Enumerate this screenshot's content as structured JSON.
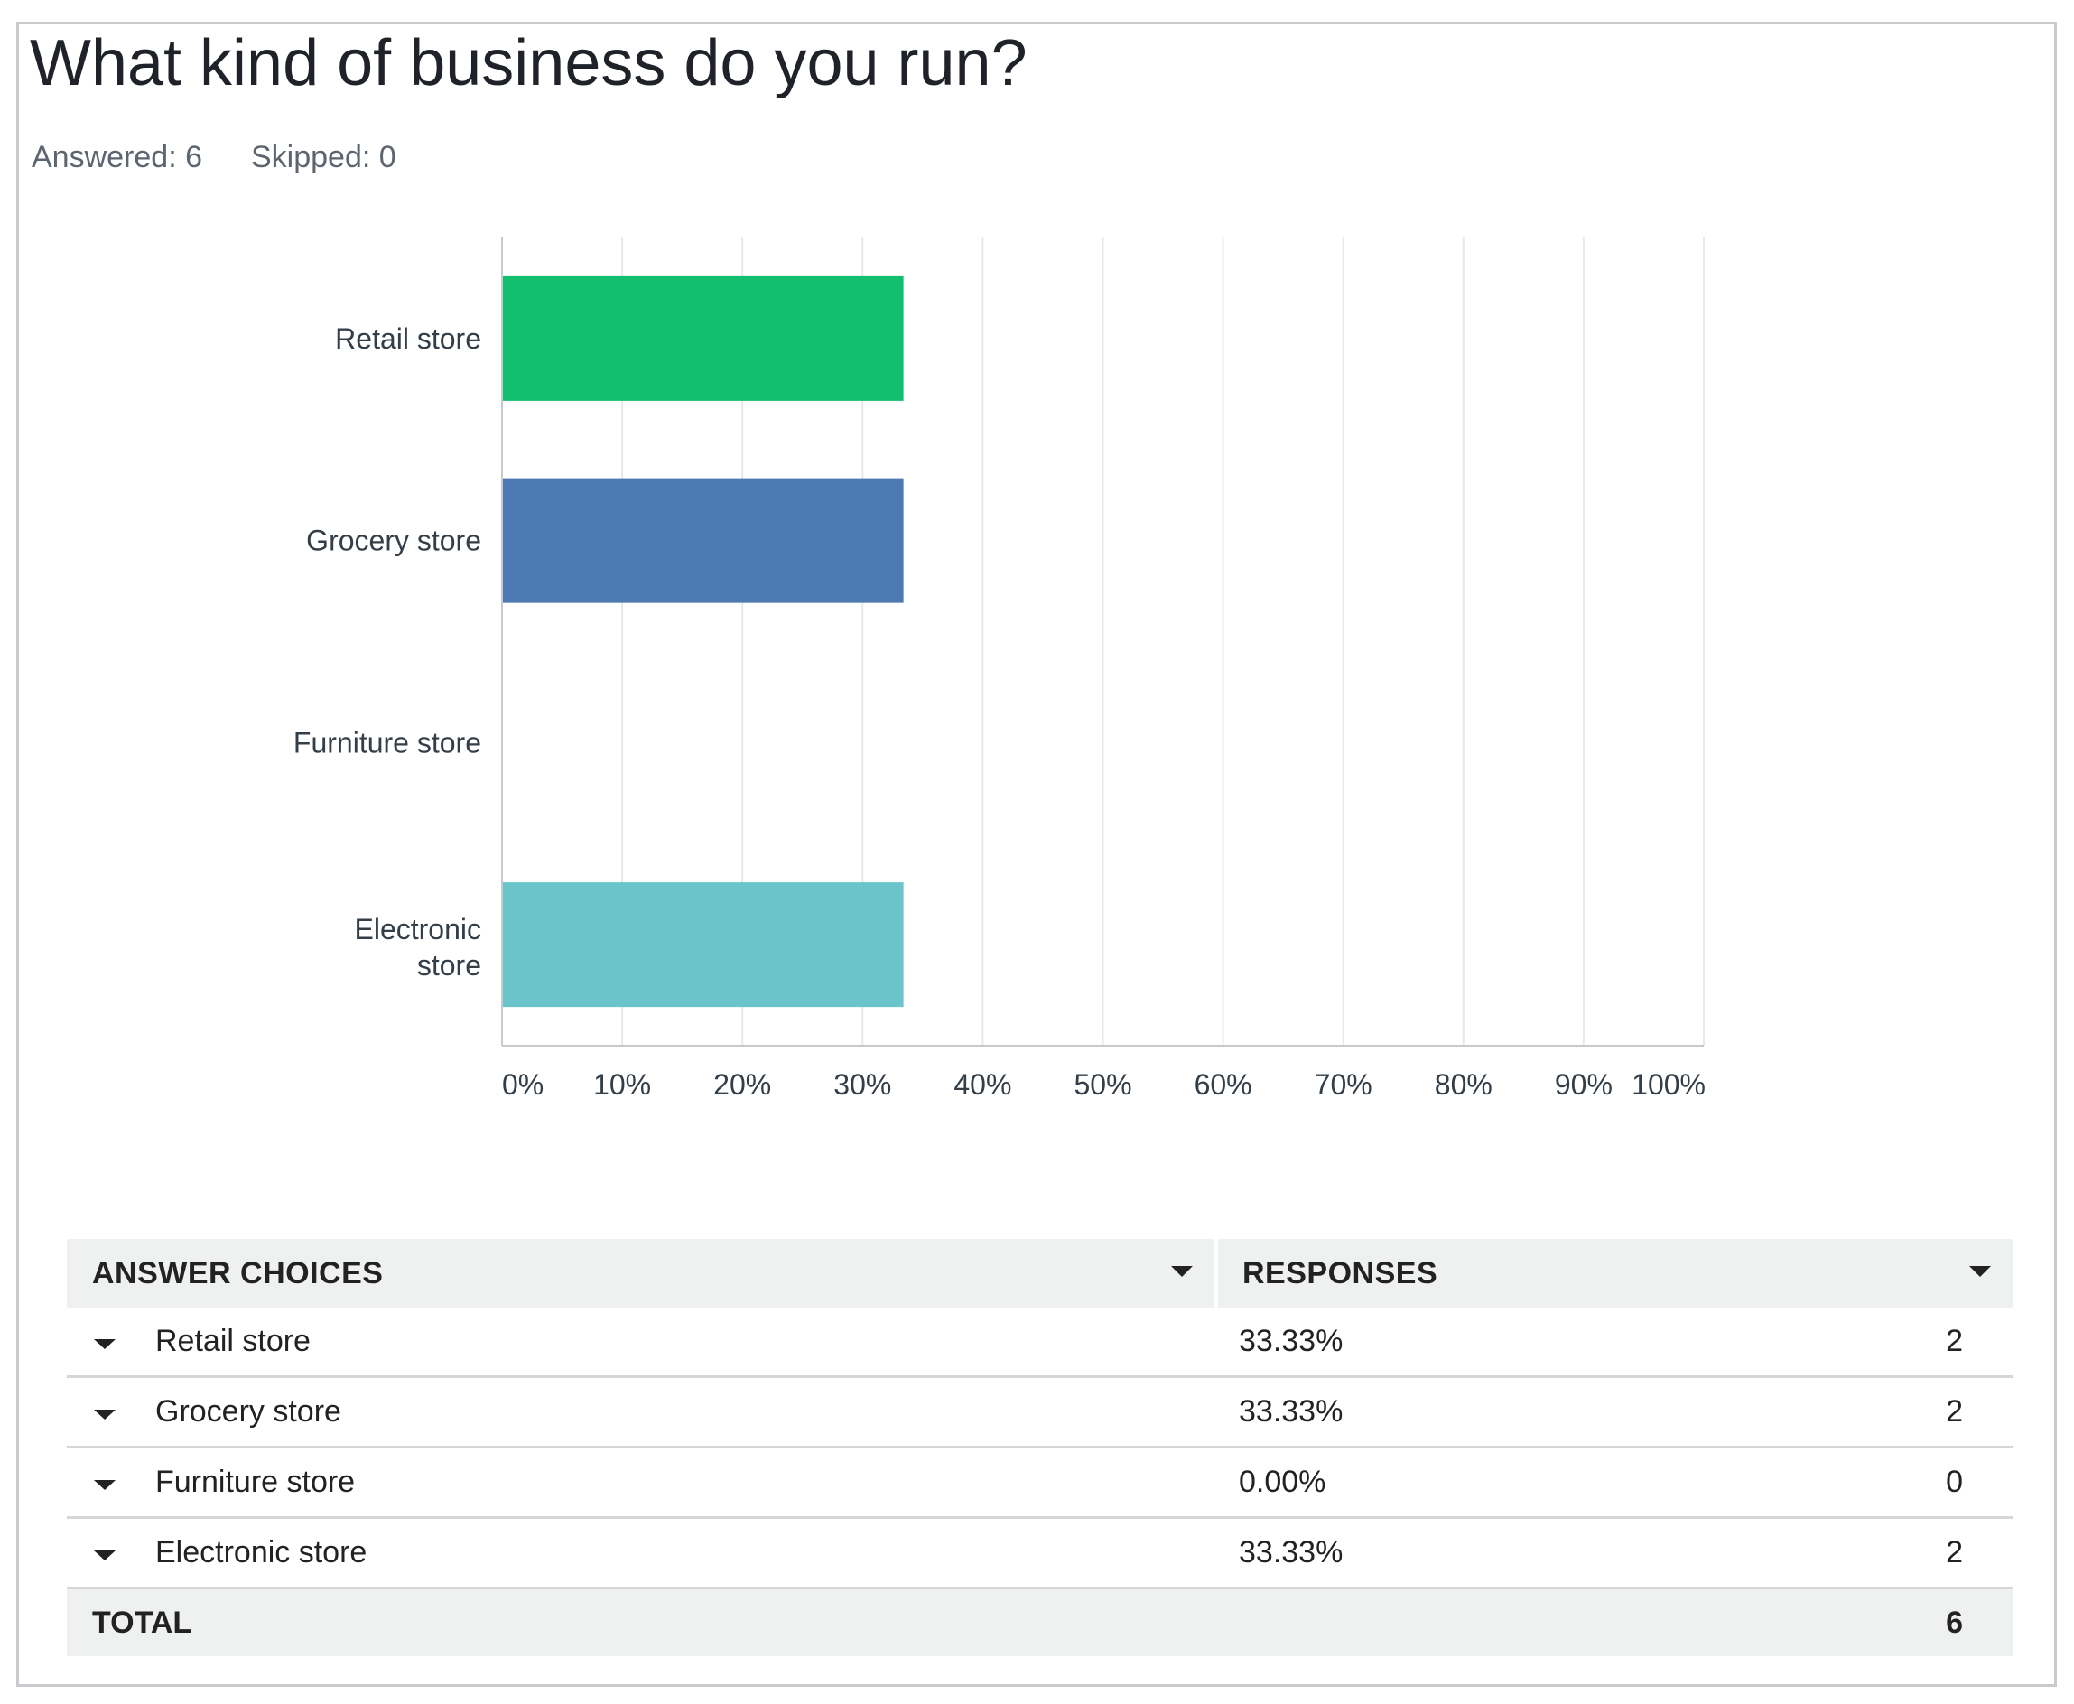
{
  "question": {
    "title": "What kind of business do you run?",
    "answered": "Answered: 6",
    "skipped": "Skipped: 0"
  },
  "chart_data": {
    "type": "bar",
    "orientation": "horizontal",
    "categories": [
      "Retail store",
      "Grocery store",
      "Furniture store",
      "Electronic store"
    ],
    "values": [
      33.33,
      33.33,
      0,
      33.33
    ],
    "colors": [
      "#12bf6e",
      "#4d79b3",
      "#e3a23b",
      "#6ac5ca"
    ],
    "xlim": [
      0,
      100
    ],
    "x_ticks": [
      "0%",
      "10%",
      "20%",
      "30%",
      "40%",
      "50%",
      "60%",
      "70%",
      "80%",
      "90%",
      "100%"
    ],
    "grid": true,
    "gridline_color": "#e6e8ea",
    "axis_color": "#c7cacd",
    "xlabel": "",
    "ylabel": ""
  },
  "table": {
    "headers": {
      "choices": "ANSWER CHOICES",
      "responses": "RESPONSES"
    },
    "rows": [
      {
        "choice": "Retail store",
        "percent": "33.33%",
        "count": "2"
      },
      {
        "choice": "Grocery store",
        "percent": "33.33%",
        "count": "2"
      },
      {
        "choice": "Furniture store",
        "percent": "0.00%",
        "count": "0"
      },
      {
        "choice": "Electronic store",
        "percent": "33.33%",
        "count": "2"
      }
    ],
    "total_label": "TOTAL",
    "total_value": "6"
  }
}
